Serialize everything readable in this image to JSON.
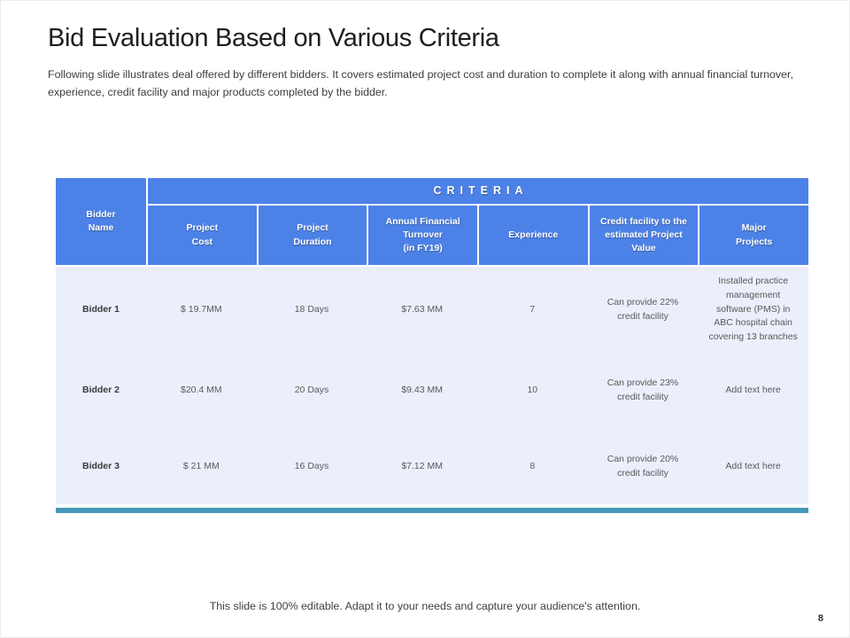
{
  "slide": {
    "title": "Bid Evaluation Based on Various Criteria",
    "subtitle": "Following slide illustrates deal offered by different bidders. It covers estimated project cost and duration to complete it along with annual financial turnover, experience, credit facility and major products completed by the bidder.",
    "footer_note": "This slide is 100% editable. Adapt it to your needs and capture your audience's attention.",
    "page_number": "8"
  },
  "table": {
    "criteria_header": "CRITERIA",
    "bidder_header": "Bidder\nName",
    "columns": [
      "Project\nCost",
      "Project\nDuration",
      "Annual Financial\nTurnover\n(in FY19)",
      "Experience",
      "Credit facility to the\nestimated Project\nValue",
      "Major\nProjects"
    ],
    "rows": [
      {
        "bidder": "Bidder 1",
        "project_cost": "$ 19.7MM",
        "project_duration": "18 Days",
        "annual_financial_turnover": "$7.63 MM",
        "experience": "7",
        "credit_facility": "Can provide 22% credit facility",
        "major_projects": "Installed practice management software (PMS) in ABC hospital chain covering 13 branches"
      },
      {
        "bidder": "Bidder 2",
        "project_cost": "$20.4 MM",
        "project_duration": "20 Days",
        "annual_financial_turnover": "$9.43 MM",
        "experience": "10",
        "credit_facility": "Can provide 23% credit facility",
        "major_projects": "Add text here"
      },
      {
        "bidder": "Bidder 3",
        "project_cost": "$ 21 MM",
        "project_duration": "16 Days",
        "annual_financial_turnover": "$7.12 MM",
        "experience": "8",
        "credit_facility": "Can provide 20% credit facility",
        "major_projects": "Add text here"
      }
    ]
  },
  "colors": {
    "header_blue": "#4c82e8",
    "body_row_bg": "#ebeffb",
    "accent_teal": "#4699b8"
  }
}
